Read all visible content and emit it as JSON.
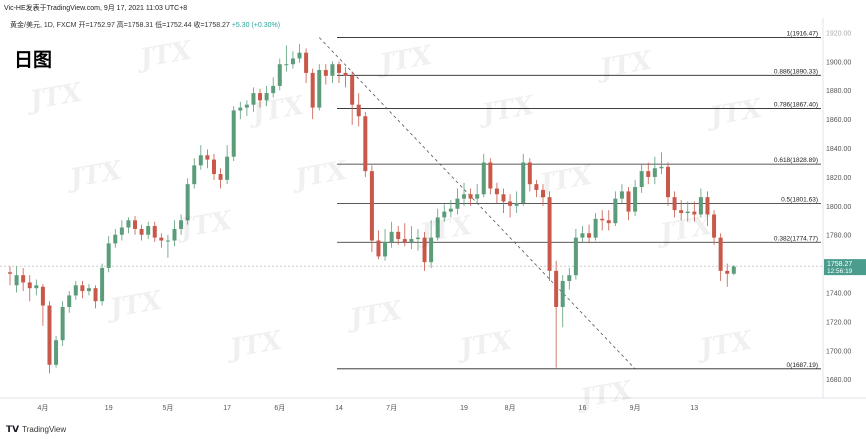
{
  "header": {
    "title": "Vic-HE发表于TradingView.com,  9月 17, 2021 11:03 UTC+8",
    "ohlc": "黄金/美元, 1D, FXCM  开=1752.97  高=1758.31  低=1752.44  收=1758.27",
    "change": "+5.30 (+0.30%)",
    "big_label": "日图"
  },
  "footer": {
    "logo_text": "TradingView"
  },
  "watermark_text": "JTX",
  "colors": {
    "up": "#5b9c7a",
    "down": "#c8594a",
    "fib_line": "#222222",
    "dashed": "#555555",
    "price_tag_bg": "#4a9c8c",
    "axis_text": "#555555"
  },
  "chart_data": {
    "type": "candlestick",
    "ylim": [
      1667,
      1930
    ],
    "y_ticks": [
      1680,
      1700,
      1720,
      1740,
      1760,
      1780,
      1800,
      1820,
      1840,
      1860,
      1880,
      1900
    ],
    "y_tick_labels": [
      "1680.00",
      "1700.00",
      "1720.00",
      "1740.00",
      "1760.00",
      "1780.00",
      "1800.00",
      "1820.00",
      "1840.00",
      "1860.00",
      "1880.00",
      "1900.00"
    ],
    "y_top_label": "1920.00",
    "x_labels": [
      {
        "label": "4月",
        "idx": 5
      },
      {
        "label": "19",
        "idx": 15
      },
      {
        "label": "5月",
        "idx": 24
      },
      {
        "label": "17",
        "idx": 33
      },
      {
        "label": "6月",
        "idx": 41
      },
      {
        "label": "14",
        "idx": 50
      },
      {
        "label": "7月",
        "idx": 58
      },
      {
        "label": "19",
        "idx": 69
      },
      {
        "label": "8月",
        "idx": 76
      },
      {
        "label": "16",
        "idx": 87
      },
      {
        "label": "9月",
        "idx": 95
      },
      {
        "label": "13",
        "idx": 104
      }
    ],
    "candles": [
      [
        1754,
        1753,
        1758,
        1745
      ],
      [
        1745,
        1752,
        1758,
        1740
      ],
      [
        1752,
        1747,
        1757,
        1741
      ],
      [
        1747,
        1743,
        1752,
        1734
      ],
      [
        1743,
        1745,
        1749,
        1738
      ],
      [
        1744,
        1731,
        1746,
        1717
      ],
      [
        1731,
        1690,
        1734,
        1684
      ],
      [
        1690,
        1707,
        1710,
        1688
      ],
      [
        1707,
        1730,
        1734,
        1703
      ],
      [
        1730,
        1738,
        1741,
        1726
      ],
      [
        1738,
        1745,
        1748,
        1735
      ],
      [
        1745,
        1741,
        1748,
        1736
      ],
      [
        1741,
        1743,
        1746,
        1738
      ],
      [
        1743,
        1734,
        1745,
        1729
      ],
      [
        1734,
        1757,
        1760,
        1731
      ],
      [
        1757,
        1774,
        1779,
        1754
      ],
      [
        1774,
        1780,
        1784,
        1771
      ],
      [
        1780,
        1785,
        1790,
        1776
      ],
      [
        1785,
        1790,
        1792,
        1781
      ],
      [
        1790,
        1784,
        1793,
        1780
      ],
      [
        1784,
        1780,
        1787,
        1776
      ],
      [
        1780,
        1786,
        1789,
        1777
      ],
      [
        1786,
        1778,
        1789,
        1775
      ],
      [
        1778,
        1776,
        1781,
        1771
      ],
      [
        1776,
        1776,
        1780,
        1764
      ],
      [
        1776,
        1784,
        1790,
        1772
      ],
      [
        1784,
        1790,
        1794,
        1780
      ],
      [
        1790,
        1815,
        1819,
        1787
      ],
      [
        1815,
        1828,
        1833,
        1812
      ],
      [
        1828,
        1835,
        1842,
        1825
      ],
      [
        1835,
        1832,
        1839,
        1826
      ],
      [
        1832,
        1822,
        1836,
        1818
      ],
      [
        1822,
        1818,
        1826,
        1812
      ],
      [
        1818,
        1834,
        1842,
        1815
      ],
      [
        1834,
        1866,
        1869,
        1831
      ],
      [
        1866,
        1868,
        1872,
        1860
      ],
      [
        1868,
        1870,
        1873,
        1862
      ],
      [
        1870,
        1878,
        1882,
        1865
      ],
      [
        1878,
        1873,
        1881,
        1868
      ],
      [
        1873,
        1878,
        1883,
        1869
      ],
      [
        1878,
        1883,
        1889,
        1875
      ],
      [
        1883,
        1898,
        1902,
        1880
      ],
      [
        1898,
        1898,
        1911,
        1893
      ],
      [
        1898,
        1902,
        1907,
        1895
      ],
      [
        1902,
        1906,
        1912,
        1899
      ],
      [
        1906,
        1892,
        1909,
        1885
      ],
      [
        1892,
        1868,
        1895,
        1860
      ],
      [
        1868,
        1894,
        1898,
        1866
      ],
      [
        1894,
        1890,
        1898,
        1884
      ],
      [
        1890,
        1898,
        1900,
        1885
      ],
      [
        1898,
        1892,
        1900,
        1885
      ],
      [
        1892,
        1890,
        1896,
        1882
      ],
      [
        1890,
        1870,
        1893,
        1856
      ],
      [
        1870,
        1862,
        1878,
        1855
      ],
      [
        1862,
        1824,
        1865,
        1820
      ],
      [
        1824,
        1776,
        1828,
        1768
      ],
      [
        1776,
        1765,
        1783,
        1763
      ],
      [
        1765,
        1775,
        1784,
        1762
      ],
      [
        1775,
        1782,
        1789,
        1771
      ],
      [
        1782,
        1777,
        1786,
        1773
      ],
      [
        1777,
        1775,
        1788,
        1772
      ],
      [
        1775,
        1777,
        1786,
        1770
      ],
      [
        1777,
        1778,
        1784,
        1769
      ],
      [
        1778,
        1761,
        1782,
        1755
      ],
      [
        1761,
        1778,
        1790,
        1757
      ],
      [
        1778,
        1792,
        1798,
        1776
      ],
      [
        1792,
        1796,
        1801,
        1789
      ],
      [
        1796,
        1798,
        1804,
        1792
      ],
      [
        1798,
        1805,
        1812,
        1794
      ],
      [
        1805,
        1808,
        1816,
        1800
      ],
      [
        1808,
        1805,
        1812,
        1800
      ],
      [
        1805,
        1808,
        1815,
        1802
      ],
      [
        1808,
        1830,
        1836,
        1806
      ],
      [
        1830,
        1812,
        1833,
        1808
      ],
      [
        1812,
        1808,
        1816,
        1802
      ],
      [
        1808,
        1803,
        1812,
        1795
      ],
      [
        1803,
        1800,
        1808,
        1792
      ],
      [
        1800,
        1802,
        1810,
        1795
      ],
      [
        1802,
        1830,
        1836,
        1800
      ],
      [
        1830,
        1815,
        1833,
        1810
      ],
      [
        1815,
        1811,
        1818,
        1806
      ],
      [
        1811,
        1806,
        1815,
        1800
      ],
      [
        1806,
        1755,
        1810,
        1748
      ],
      [
        1755,
        1730,
        1762,
        1688
      ],
      [
        1730,
        1748,
        1752,
        1716
      ],
      [
        1748,
        1752,
        1757,
        1742
      ],
      [
        1752,
        1778,
        1784,
        1749
      ],
      [
        1778,
        1781,
        1786,
        1775
      ],
      [
        1781,
        1778,
        1787,
        1774
      ],
      [
        1778,
        1791,
        1795,
        1776
      ],
      [
        1791,
        1790,
        1797,
        1783
      ],
      [
        1790,
        1788,
        1797,
        1783
      ],
      [
        1788,
        1805,
        1810,
        1786
      ],
      [
        1805,
        1810,
        1815,
        1802
      ],
      [
        1810,
        1796,
        1813,
        1790
      ],
      [
        1796,
        1813,
        1818,
        1793
      ],
      [
        1813,
        1824,
        1829,
        1809
      ],
      [
        1824,
        1820,
        1830,
        1815
      ],
      [
        1820,
        1826,
        1834,
        1815
      ],
      [
        1826,
        1827,
        1837,
        1822
      ],
      [
        1827,
        1806,
        1830,
        1800
      ],
      [
        1806,
        1797,
        1810,
        1792
      ],
      [
        1797,
        1795,
        1804,
        1790
      ],
      [
        1795,
        1796,
        1803,
        1789
      ],
      [
        1796,
        1794,
        1803,
        1789
      ],
      [
        1794,
        1806,
        1812,
        1792
      ],
      [
        1806,
        1794,
        1810,
        1786
      ],
      [
        1794,
        1778,
        1797,
        1773
      ],
      [
        1778,
        1755,
        1781,
        1748
      ],
      [
        1755,
        1753,
        1760,
        1744
      ],
      [
        1753,
        1758,
        1759,
        1752
      ]
    ],
    "fib_levels": [
      {
        "label": "1(1916.47)",
        "value": 1916.47
      },
      {
        "label": "0.886(1890.33)",
        "value": 1890.33
      },
      {
        "label": "0.786(1867.40)",
        "value": 1867.4
      },
      {
        "label": "0.618(1828.89)",
        "value": 1828.89
      },
      {
        "label": "0.5(1801.63)",
        "value": 1801.63
      },
      {
        "label": "0.382(1774.77)",
        "value": 1774.77
      },
      {
        "label": "0(1687.19)",
        "value": 1687.19
      }
    ],
    "fib_start_idx": 50,
    "fib_end_idx": 121,
    "trend_line": {
      "from": [
        47,
        1916.47
      ],
      "to": [
        95,
        1687.19
      ]
    },
    "current_price": {
      "value": 1758.27,
      "label": "1758.27",
      "countdown": "12:56:19"
    }
  }
}
